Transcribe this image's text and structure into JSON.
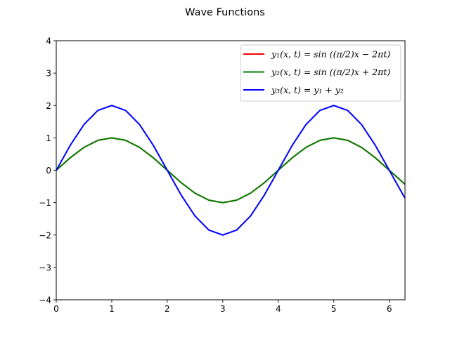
{
  "chart_data": {
    "type": "line",
    "title": "Wave Functions",
    "xlabel": "",
    "ylabel": "",
    "xlim": [
      0,
      6.2832
    ],
    "ylim": [
      -4,
      4
    ],
    "xticks": [
      0,
      1,
      2,
      3,
      4,
      5,
      6
    ],
    "yticks": [
      -4,
      -3,
      -2,
      -1,
      0,
      1,
      2,
      3,
      4
    ],
    "grid": false,
    "legend_position": "top-right",
    "series": [
      {
        "name": "y₁(x, t) = sin ((π/2)x − 2πt)",
        "color": "#ff0000",
        "x": [
          0,
          0.25,
          0.5,
          0.75,
          1,
          1.25,
          1.5,
          1.75,
          2,
          2.25,
          2.5,
          2.75,
          3,
          3.25,
          3.5,
          3.75,
          4,
          4.25,
          4.5,
          4.75,
          5,
          5.25,
          5.5,
          5.75,
          6,
          6.25,
          6.2832
        ],
        "y": [
          0,
          0.383,
          0.707,
          0.924,
          1,
          0.924,
          0.707,
          0.383,
          0,
          -0.383,
          -0.707,
          -0.924,
          -1,
          -0.924,
          -0.707,
          -0.383,
          0,
          0.383,
          0.707,
          0.924,
          1,
          0.924,
          0.707,
          0.383,
          0,
          -0.383,
          -0.43
        ]
      },
      {
        "name": "y₂(x, t) = sin ((π/2)x + 2πt)",
        "color": "#008000",
        "x": [
          0,
          0.25,
          0.5,
          0.75,
          1,
          1.25,
          1.5,
          1.75,
          2,
          2.25,
          2.5,
          2.75,
          3,
          3.25,
          3.5,
          3.75,
          4,
          4.25,
          4.5,
          4.75,
          5,
          5.25,
          5.5,
          5.75,
          6,
          6.25,
          6.2832
        ],
        "y": [
          0,
          0.383,
          0.707,
          0.924,
          1,
          0.924,
          0.707,
          0.383,
          0,
          -0.383,
          -0.707,
          -0.924,
          -1,
          -0.924,
          -0.707,
          -0.383,
          0,
          0.383,
          0.707,
          0.924,
          1,
          0.924,
          0.707,
          0.383,
          0,
          -0.383,
          -0.43
        ]
      },
      {
        "name": "y₃(x, t) = y₁ + y₂",
        "color": "#0000ff",
        "x": [
          0,
          0.25,
          0.5,
          0.75,
          1,
          1.25,
          1.5,
          1.75,
          2,
          2.25,
          2.5,
          2.75,
          3,
          3.25,
          3.5,
          3.75,
          4,
          4.25,
          4.5,
          4.75,
          5,
          5.25,
          5.5,
          5.75,
          6,
          6.25,
          6.2832
        ],
        "y": [
          0,
          0.765,
          1.414,
          1.848,
          2,
          1.848,
          1.414,
          0.765,
          0,
          -0.765,
          -1.414,
          -1.848,
          -2,
          -1.848,
          -1.414,
          -0.765,
          0,
          0.765,
          1.414,
          1.848,
          2,
          1.848,
          1.414,
          0.765,
          0,
          -0.765,
          -0.86
        ]
      }
    ]
  }
}
